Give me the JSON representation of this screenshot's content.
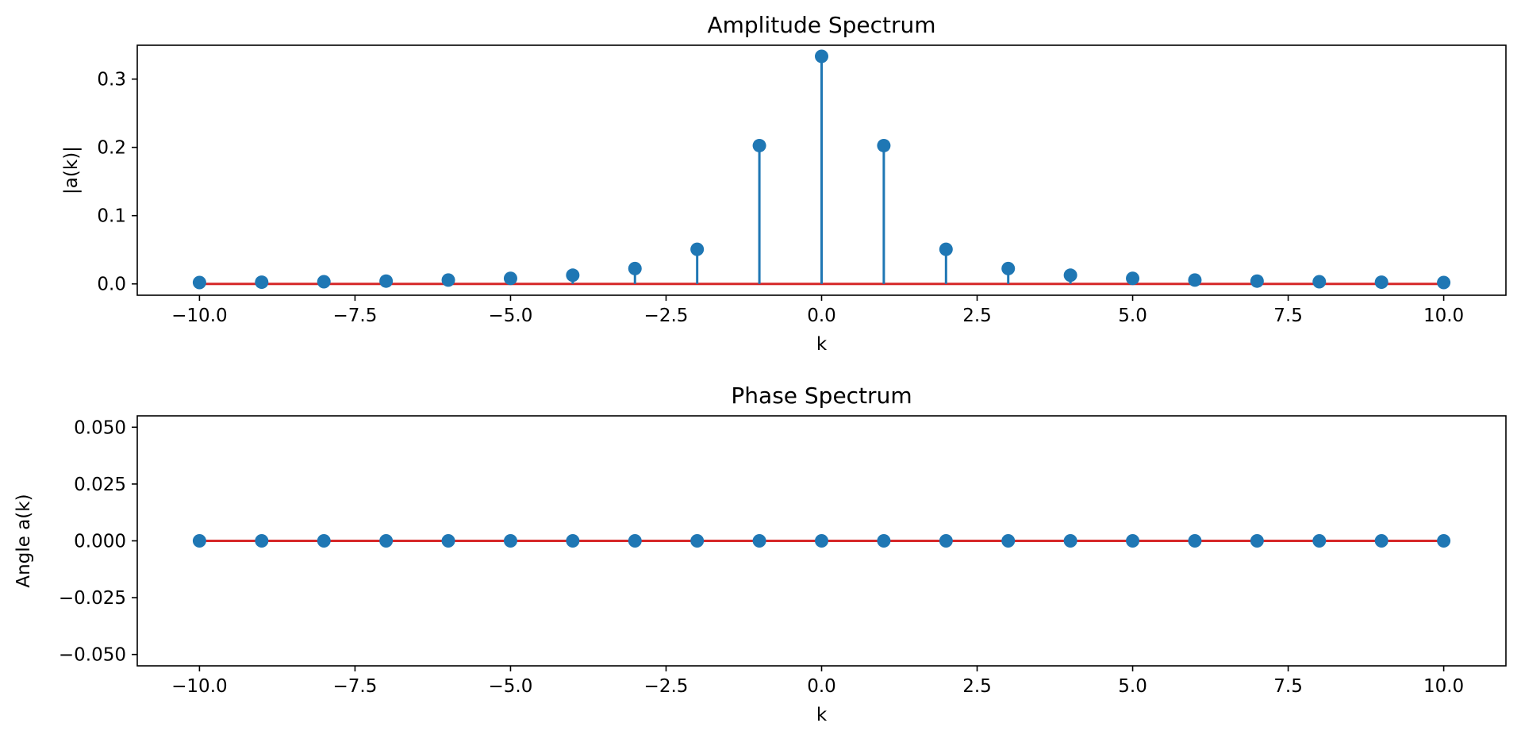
{
  "chart_data": [
    {
      "type": "stem",
      "title": "Amplitude Spectrum",
      "xlabel": "k",
      "ylabel": "|a(k)|",
      "xlim": [
        -11,
        11
      ],
      "ylim": [
        -0.0166,
        0.3496
      ],
      "xticks": [
        -10,
        -7.5,
        -5,
        -2.5,
        0,
        2.5,
        5,
        7.5,
        10
      ],
      "xtick_labels": [
        "−10.0",
        "−7.5",
        "−5.0",
        "−2.5",
        "0.0",
        "2.5",
        "5.0",
        "7.5",
        "10.0"
      ],
      "yticks": [
        0,
        0.1,
        0.2,
        0.3
      ],
      "ytick_labels": [
        "0.0",
        "0.1",
        "0.2",
        "0.3"
      ],
      "grid": false,
      "baseline": 0,
      "colors": {
        "stem": "#1f77b4",
        "baseline": "#d62728"
      },
      "x": [
        -10,
        -9,
        -8,
        -7,
        -6,
        -5,
        -4,
        -3,
        -2,
        -1,
        0,
        1,
        2,
        3,
        4,
        5,
        6,
        7,
        8,
        9,
        10
      ],
      "values": [
        0.002,
        0.0025,
        0.0032,
        0.0041,
        0.0056,
        0.0081,
        0.0127,
        0.0225,
        0.0507,
        0.2026,
        0.3333,
        0.2026,
        0.0507,
        0.0225,
        0.0127,
        0.0081,
        0.0056,
        0.0041,
        0.0032,
        0.0025,
        0.002
      ]
    },
    {
      "type": "stem",
      "title": "Phase Spectrum",
      "xlabel": "k",
      "ylabel": "Angle a(k)",
      "xlim": [
        -11,
        11
      ],
      "ylim": [
        -0.055,
        0.055
      ],
      "xticks": [
        -10,
        -7.5,
        -5,
        -2.5,
        0,
        2.5,
        5,
        7.5,
        10
      ],
      "xtick_labels": [
        "−10.0",
        "−7.5",
        "−5.0",
        "−2.5",
        "0.0",
        "2.5",
        "5.0",
        "7.5",
        "10.0"
      ],
      "yticks": [
        0.05,
        0.025,
        0,
        -0.025,
        -0.05
      ],
      "ytick_labels": [
        "0.050",
        "0.025",
        "0.000",
        "−0.025",
        "−0.050"
      ],
      "grid": false,
      "baseline": 0,
      "colors": {
        "stem": "#1f77b4",
        "baseline": "#d62728"
      },
      "x": [
        -10,
        -9,
        -8,
        -7,
        -6,
        -5,
        -4,
        -3,
        -2,
        -1,
        0,
        1,
        2,
        3,
        4,
        5,
        6,
        7,
        8,
        9,
        10
      ],
      "values": [
        0,
        0,
        0,
        0,
        0,
        0,
        0,
        0,
        0,
        0,
        0,
        0,
        0,
        0,
        0,
        0,
        0,
        0,
        0,
        0,
        0
      ]
    }
  ]
}
